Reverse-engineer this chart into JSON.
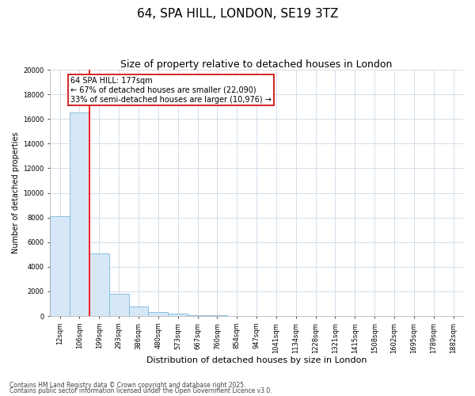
{
  "title": "64, SPA HILL, LONDON, SE19 3TZ",
  "subtitle": "Size of property relative to detached houses in London",
  "xlabel": "Distribution of detached houses by size in London",
  "ylabel": "Number of detached properties",
  "categories": [
    "12sqm",
    "106sqm",
    "199sqm",
    "293sqm",
    "386sqm",
    "480sqm",
    "573sqm",
    "667sqm",
    "760sqm",
    "854sqm",
    "947sqm",
    "1041sqm",
    "1134sqm",
    "1228sqm",
    "1321sqm",
    "1415sqm",
    "1508sqm",
    "1602sqm",
    "1695sqm",
    "1789sqm",
    "1882sqm"
  ],
  "values": [
    8100,
    16500,
    5100,
    1800,
    750,
    350,
    175,
    100,
    60,
    35,
    10,
    5,
    3,
    2,
    1,
    1,
    1,
    0,
    0,
    0,
    0
  ],
  "bar_color": "#d6e8f7",
  "bar_edge_color": "#7ab8d9",
  "red_line_x": 1.5,
  "annotation_text": "64 SPA HILL: 177sqm\n← 67% of detached houses are smaller (22,090)\n33% of semi-detached houses are larger (10,976) →",
  "annotation_box_color": "#ffffff",
  "annotation_box_edge_color": "#cc0000",
  "ylim": [
    0,
    20000
  ],
  "yticks": [
    0,
    2000,
    4000,
    6000,
    8000,
    10000,
    12000,
    14000,
    16000,
    18000,
    20000
  ],
  "footnote1": "Contains HM Land Registry data © Crown copyright and database right 2025.",
  "footnote2": "Contains public sector information licensed under the Open Government Licence v3.0.",
  "background_color": "#ffffff",
  "grid_color": "#ccd8e8",
  "title_fontsize": 11,
  "subtitle_fontsize": 9,
  "tick_fontsize": 6,
  "ylabel_fontsize": 7,
  "xlabel_fontsize": 8,
  "footnote_fontsize": 5.5,
  "annotation_fontsize": 7
}
